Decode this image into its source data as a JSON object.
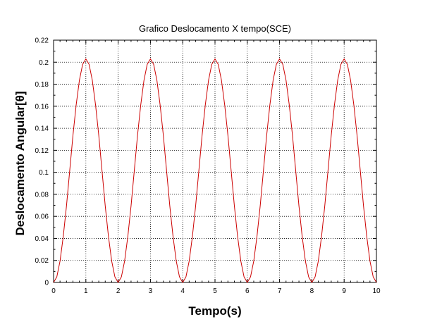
{
  "chart_data": {
    "type": "line",
    "title": "Grafico Deslocamento X tempo(SCE)",
    "xlabel": "Tempo(s)",
    "ylabel": "Deslocamento Angular[θ]",
    "xlim": [
      0,
      10
    ],
    "ylim": [
      0,
      0.22
    ],
    "xticks": [
      "0",
      "1",
      "2",
      "3",
      "4",
      "5",
      "6",
      "7",
      "8",
      "9",
      "10"
    ],
    "yticks": [
      "0",
      "0.02",
      "0.04",
      "0.06",
      "0.08",
      "0.1",
      "0.12",
      "0.14",
      "0.16",
      "0.18",
      "0.2",
      "0.22"
    ],
    "grid": true,
    "series": [
      {
        "color": "#cc0000",
        "x": [
          0,
          0.1,
          0.2,
          0.3,
          0.4,
          0.5,
          0.6,
          0.7,
          0.8,
          0.9,
          1.0,
          1.1,
          1.2,
          1.3,
          1.4,
          1.5,
          1.6,
          1.7,
          1.8,
          1.9,
          2.0,
          2.1,
          2.2,
          2.3,
          2.4,
          2.5,
          2.6,
          2.7,
          2.8,
          2.9,
          3.0,
          3.1,
          3.2,
          3.3,
          3.4,
          3.5,
          3.6,
          3.7,
          3.8,
          3.9,
          4.0,
          4.1,
          4.2,
          4.3,
          4.4,
          4.5,
          4.6,
          4.7,
          4.8,
          4.9,
          5.0,
          5.1,
          5.2,
          5.3,
          5.4,
          5.5,
          5.6,
          5.7,
          5.8,
          5.9,
          6.0,
          6.1,
          6.2,
          6.3,
          6.4,
          6.5,
          6.6,
          6.7,
          6.8,
          6.9,
          7.0,
          7.1,
          7.2,
          7.3,
          7.4,
          7.5,
          7.6,
          7.7,
          7.8,
          7.9,
          8.0,
          8.1,
          8.2,
          8.3,
          8.4,
          8.5,
          8.6,
          8.7,
          8.8,
          8.9,
          9.0,
          9.1,
          9.2,
          9.3,
          9.4,
          9.5,
          9.6,
          9.7,
          9.8,
          9.9,
          10.0
        ],
        "y": [
          0,
          0.005,
          0.0194,
          0.0418,
          0.0695,
          0.1015,
          0.1335,
          0.1612,
          0.1836,
          0.198,
          0.203,
          0.198,
          0.1836,
          0.1612,
          0.1335,
          0.1015,
          0.0695,
          0.0418,
          0.0194,
          0.005,
          0,
          0.005,
          0.0194,
          0.0418,
          0.0695,
          0.1015,
          0.1335,
          0.1612,
          0.1836,
          0.198,
          0.203,
          0.198,
          0.1836,
          0.1612,
          0.1335,
          0.1015,
          0.0695,
          0.0418,
          0.0194,
          0.005,
          0,
          0.005,
          0.0194,
          0.0418,
          0.0695,
          0.1015,
          0.1335,
          0.1612,
          0.1836,
          0.198,
          0.203,
          0.198,
          0.1836,
          0.1612,
          0.1335,
          0.1015,
          0.0695,
          0.0418,
          0.0194,
          0.005,
          0,
          0.005,
          0.0194,
          0.0418,
          0.0695,
          0.1015,
          0.1335,
          0.1612,
          0.1836,
          0.198,
          0.203,
          0.198,
          0.1836,
          0.1612,
          0.1335,
          0.1015,
          0.0695,
          0.0418,
          0.0194,
          0.005,
          0,
          0.005,
          0.0194,
          0.0418,
          0.0695,
          0.1015,
          0.1335,
          0.1612,
          0.1836,
          0.198,
          0.203,
          0.198,
          0.1836,
          0.1612,
          0.1335,
          0.1015,
          0.0695,
          0.0418,
          0.0194,
          0.005,
          0
        ]
      }
    ]
  }
}
